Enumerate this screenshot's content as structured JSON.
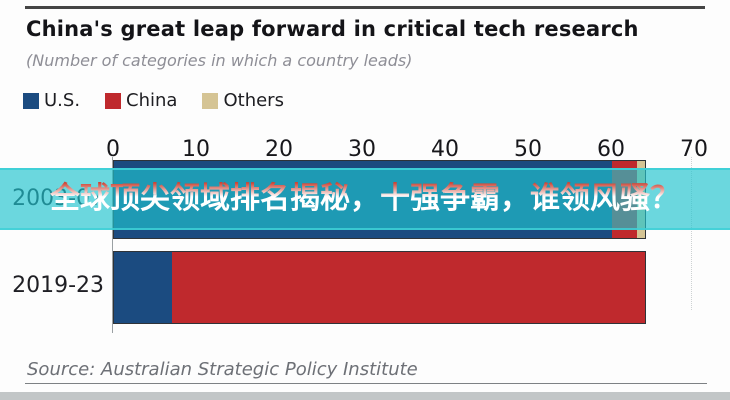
{
  "chart_data": {
    "type": "bar",
    "orientation": "horizontal",
    "stacked": true,
    "title": "China's great leap forward in critical tech research",
    "subtitle": "(Number of categories in which a country leads)",
    "categories": [
      "2003-07",
      "2019-23"
    ],
    "series": [
      {
        "name": "U.S.",
        "color": "#1b4b80",
        "values": [
          60,
          7
        ]
      },
      {
        "name": "China",
        "color": "#bf292d",
        "values": [
          3,
          57
        ]
      },
      {
        "name": "Others",
        "color": "#d5c494",
        "values": [
          1,
          0
        ]
      }
    ],
    "x_ticks": [
      0,
      10,
      20,
      30,
      40,
      50,
      60,
      70
    ],
    "xlim": [
      0,
      70
    ],
    "legend_position": "top-left",
    "grid": "off"
  },
  "overlay_banner": {
    "text": "全球顶尖领域排名揭秘，十强争霸，谁领风骚？",
    "band_color": "#20c4ce",
    "text_top_color": "#bf392a",
    "text_bottom_color": "#ffffff"
  },
  "footer": {
    "source": "Source: Australian Strategic Policy Institute"
  }
}
